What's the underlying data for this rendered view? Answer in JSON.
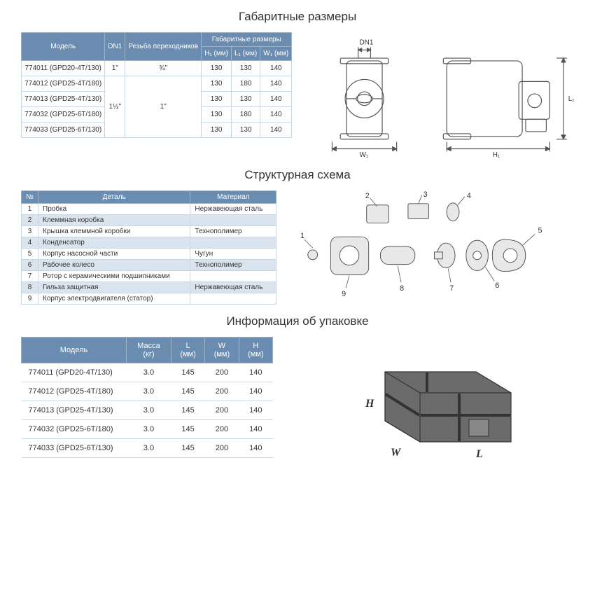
{
  "titles": {
    "dimensions": "Габаритные размеры",
    "structure": "Структурная схема",
    "packaging": "Информация об упаковке"
  },
  "colors": {
    "header_bg": "#6a8cb0",
    "header_fg": "#ffffff",
    "row_alt_bg": "#d9e4ee",
    "border": "#c9d5e1",
    "stroke": "#555555"
  },
  "dim_table": {
    "headers": {
      "model": "Модель",
      "dn1": "DN1",
      "thread": "Резьба переходников",
      "dims_group": "Габаритные размеры",
      "h1": "H₁ (мм)",
      "l1": "L₁ (мм)",
      "w1": "W₁ (мм)"
    },
    "rows": [
      {
        "model": "774011 (GPD20-4T/130)",
        "dn1": "1\"",
        "thread": "¾\"",
        "h1": "130",
        "l1": "130",
        "w1": "140"
      },
      {
        "model": "774012 (GPD25-4T/180)",
        "dn1": "",
        "thread": "",
        "h1": "130",
        "l1": "180",
        "w1": "140"
      },
      {
        "model": "774013 (GPD25-4T/130)",
        "dn1": "",
        "thread": "",
        "h1": "130",
        "l1": "130",
        "w1": "140"
      },
      {
        "model": "774032 (GPD25-6T/180)",
        "dn1": "",
        "thread": "",
        "h1": "130",
        "l1": "180",
        "w1": "140"
      },
      {
        "model": "774033 (GPD25-6T/130)",
        "dn1": "",
        "thread": "",
        "h1": "130",
        "l1": "130",
        "w1": "140"
      }
    ],
    "merged": {
      "dn1_span4": "1½\"",
      "thread_span4": "1\""
    }
  },
  "drawing_labels": {
    "dn1": "DN1",
    "w1": "W₁",
    "l1": "L₁",
    "h1": "H₁"
  },
  "parts_table": {
    "headers": {
      "num": "№",
      "part": "Деталь",
      "material": "Материал"
    },
    "rows": [
      {
        "n": "1",
        "part": "Пробка",
        "mat": "Нержавеющая сталь"
      },
      {
        "n": "2",
        "part": "Клеммная коробка",
        "mat": ""
      },
      {
        "n": "3",
        "part": "Крышка клеммной коробки",
        "mat": "Технополимер"
      },
      {
        "n": "4",
        "part": "Конденсатор",
        "mat": ""
      },
      {
        "n": "5",
        "part": "Корпус насосной части",
        "mat": "Чугун"
      },
      {
        "n": "6",
        "part": "Рабочее колесо",
        "mat": "Технополимер"
      },
      {
        "n": "7",
        "part": "Ротор с керамическими подшипниками",
        "mat": ""
      },
      {
        "n": "8",
        "part": "Гильза защитная",
        "mat": "Нержавеющая сталь"
      },
      {
        "n": "9",
        "part": "Корпус электродвигателя (статор)",
        "mat": ""
      }
    ]
  },
  "pack_table": {
    "headers": {
      "model": "Модель",
      "mass": "Масса",
      "mass_u": "(кг)",
      "L": "L",
      "W": "W",
      "H": "H",
      "mm": "(мм)"
    },
    "rows": [
      {
        "model": "774011 (GPD20-4T/130)",
        "mass": "3.0",
        "L": "145",
        "W": "200",
        "H": "140"
      },
      {
        "model": "774012 (GPD25-4T/180)",
        "mass": "3.0",
        "L": "145",
        "W": "200",
        "H": "140"
      },
      {
        "model": "774013 (GPD25-4T/130)",
        "mass": "3.0",
        "L": "145",
        "W": "200",
        "H": "140"
      },
      {
        "model": "774032 (GPD25-6T/180)",
        "mass": "3.0",
        "L": "145",
        "W": "200",
        "H": "140"
      },
      {
        "model": "774033 (GPD25-6T/130)",
        "mass": "3.0",
        "L": "145",
        "W": "200",
        "H": "140"
      }
    ]
  },
  "box_labels": {
    "H": "H",
    "W": "W",
    "L": "L"
  }
}
